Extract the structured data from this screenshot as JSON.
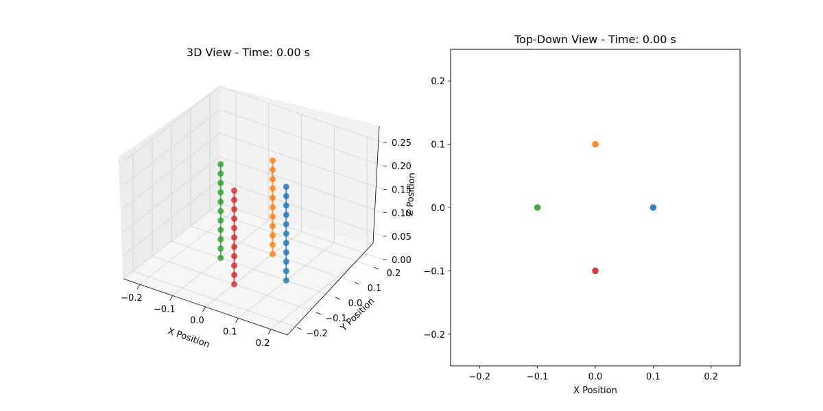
{
  "chart_data": [
    {
      "type": "scatter",
      "projection": "3d",
      "title": "3D View - Time: 0.00 s",
      "xlabel": "X Position",
      "ylabel": "Y Position",
      "zlabel": "Z Position",
      "xlim": [
        -0.25,
        0.25
      ],
      "ylim": [
        -0.25,
        0.25
      ],
      "zlim": [
        0,
        0.25
      ],
      "xticks": [
        "−0.2",
        "−0.1",
        "0.0",
        "0.1",
        "0.2"
      ],
      "yticks": [
        "−0.2",
        "−0.1",
        "0.0",
        "0.1",
        "0.2"
      ],
      "zticks": [
        "0.00",
        "0.05",
        "0.10",
        "0.15",
        "0.20",
        "0.25"
      ],
      "grid": true,
      "points_per_series": 11,
      "series": [
        {
          "color": "#1f77b4",
          "x": 0.1,
          "y": 0.0,
          "z_start": 0.0,
          "z_end": 0.2
        },
        {
          "color": "#ff7f0e",
          "x": 0.0,
          "y": 0.1,
          "z_start": 0.0,
          "z_end": 0.2
        },
        {
          "color": "#2ca02c",
          "x": -0.1,
          "y": 0.0,
          "z_start": 0.0,
          "z_end": 0.2
        },
        {
          "color": "#d62728",
          "x": 0.0,
          "y": -0.1,
          "z_start": 0.0,
          "z_end": 0.2
        }
      ]
    },
    {
      "type": "scatter",
      "title": "Top-Down View - Time: 0.00 s",
      "xlabel": "X Position",
      "ylabel": "",
      "xlim": [
        -0.25,
        0.25
      ],
      "ylim": [
        -0.25,
        0.25
      ],
      "xticks": [
        "−0.2",
        "−0.1",
        "0.0",
        "0.1",
        "0.2"
      ],
      "yticks": [
        "−0.2",
        "−0.1",
        "0.0",
        "0.1",
        "0.2"
      ],
      "grid": false,
      "series": [
        {
          "color": "#1f77b4",
          "x": 0.1,
          "y": 0.0
        },
        {
          "color": "#ff7f0e",
          "x": 0.0,
          "y": 0.1
        },
        {
          "color": "#2ca02c",
          "x": -0.1,
          "y": 0.0
        },
        {
          "color": "#d62728",
          "x": 0.0,
          "y": -0.1
        }
      ]
    }
  ]
}
